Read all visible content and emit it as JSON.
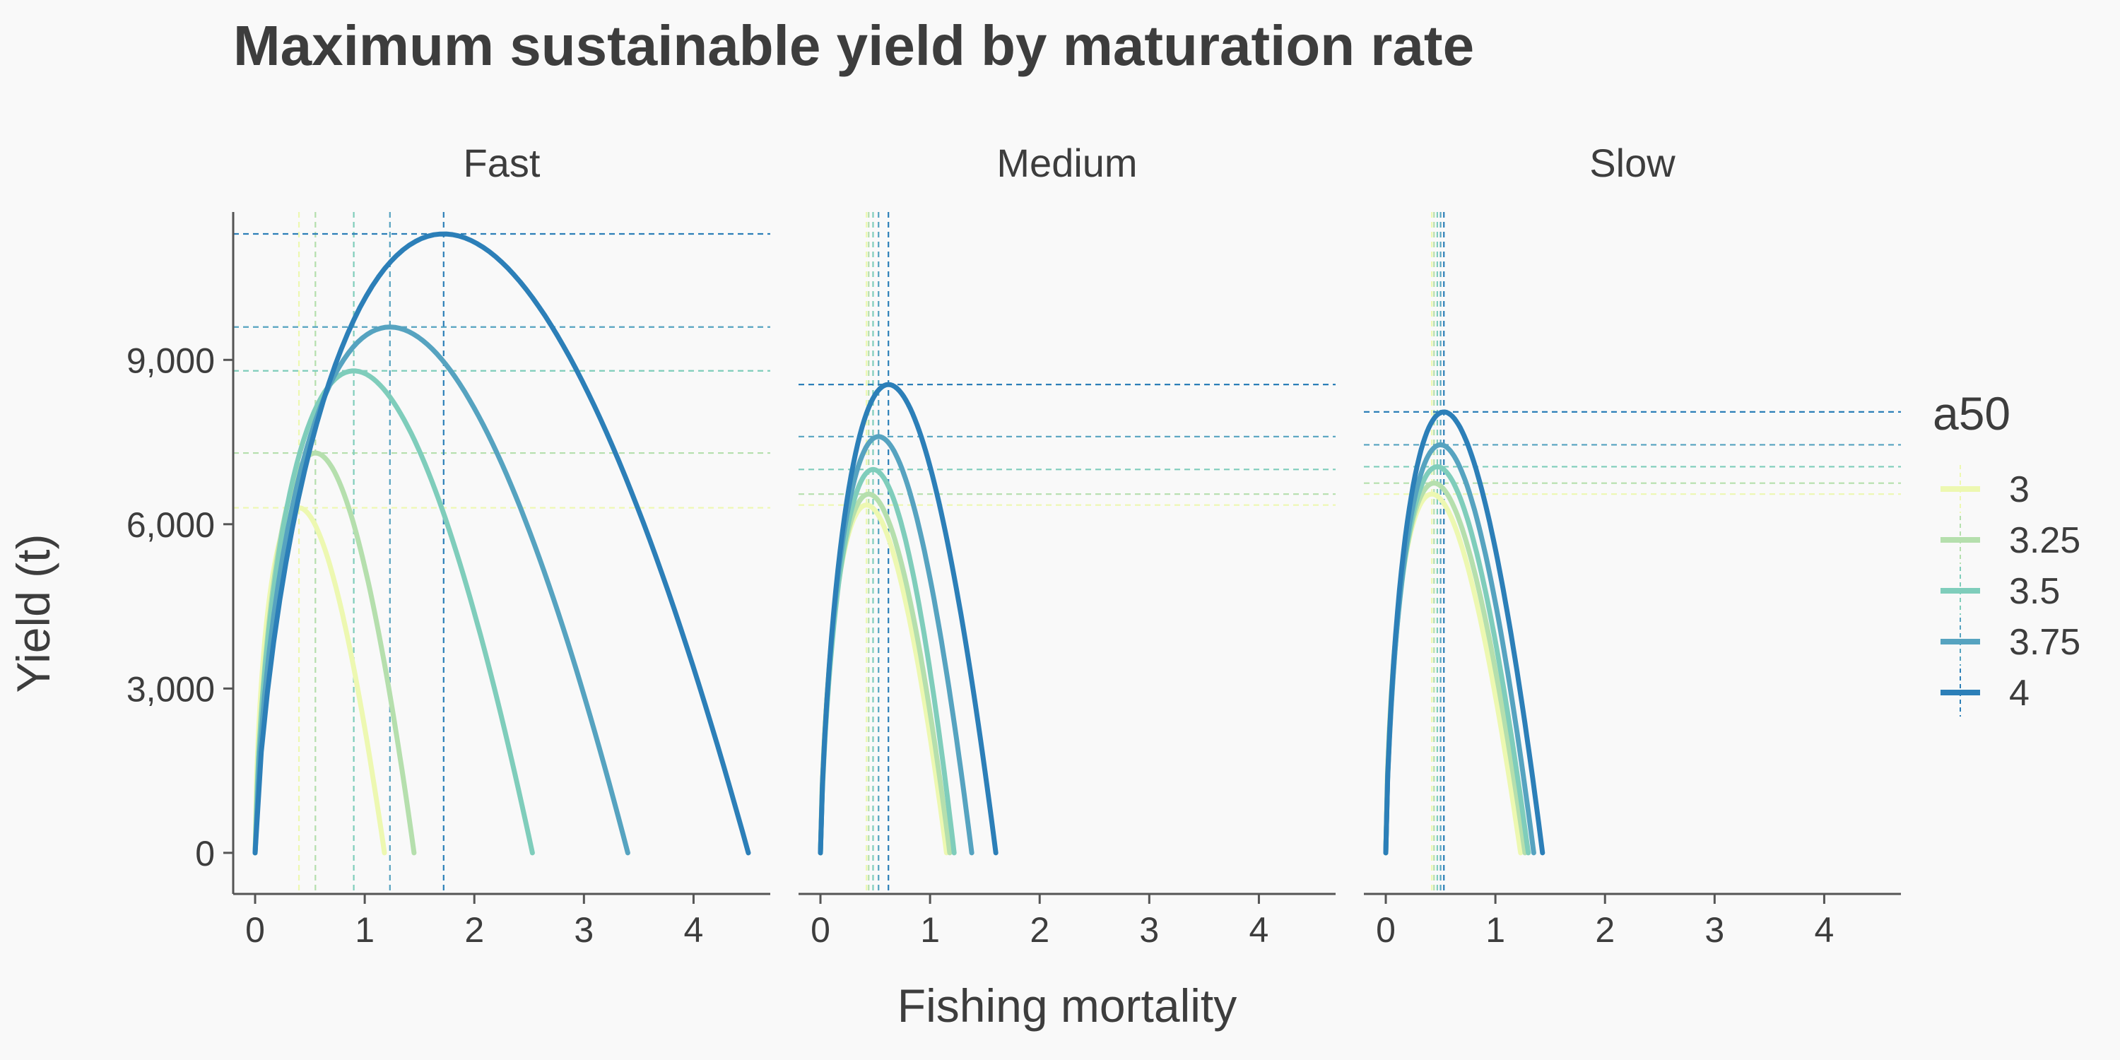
{
  "chart_data": {
    "type": "line",
    "title": "Maximum sustainable yield by maturation rate",
    "xlabel": "Fishing mortality",
    "ylabel": "Yield (t)",
    "xlim": [
      -0.2,
      4.7
    ],
    "ylim": [
      -750,
      11700
    ],
    "x_ticks": [
      0,
      1,
      2,
      3,
      4
    ],
    "x_tick_labels": [
      "0",
      "1",
      "2",
      "3",
      "4"
    ],
    "y_ticks": [
      0,
      3000,
      6000,
      9000
    ],
    "y_tick_labels": [
      "0",
      "3,000",
      "6,000",
      "9,000"
    ],
    "grid": false,
    "legend": {
      "title": "a50",
      "position": "right",
      "labels": [
        "3",
        "3.25",
        "3.5",
        "3.75",
        "4"
      ]
    },
    "colors": [
      "#edf8b1",
      "#b5dfad",
      "#7fcdbb",
      "#56a3c0",
      "#2c7fb8"
    ],
    "reference_lines": "dashed vertical line at F_MSY and dashed horizontal line at MSY for each a50",
    "panels": [
      {
        "name": "Fast",
        "series": [
          {
            "name": "3",
            "fmsy": 0.4,
            "msy": 6300,
            "fmax": 1.18
          },
          {
            "name": "3.25",
            "fmsy": 0.55,
            "msy": 7300,
            "fmax": 1.45
          },
          {
            "name": "3.5",
            "fmsy": 0.9,
            "msy": 8800,
            "fmax": 2.53
          },
          {
            "name": "3.75",
            "fmsy": 1.23,
            "msy": 9600,
            "fmax": 3.4
          },
          {
            "name": "4",
            "fmsy": 1.72,
            "msy": 11300,
            "fmax": 4.5
          }
        ]
      },
      {
        "name": "Medium",
        "series": [
          {
            "name": "3",
            "fmsy": 0.42,
            "msy": 6350,
            "fmax": 1.15
          },
          {
            "name": "3.25",
            "fmsy": 0.44,
            "msy": 6550,
            "fmax": 1.18
          },
          {
            "name": "3.5",
            "fmsy": 0.48,
            "msy": 7000,
            "fmax": 1.22
          },
          {
            "name": "3.75",
            "fmsy": 0.53,
            "msy": 7600,
            "fmax": 1.38
          },
          {
            "name": "4",
            "fmsy": 0.62,
            "msy": 8550,
            "fmax": 1.6
          }
        ]
      },
      {
        "name": "Slow",
        "series": [
          {
            "name": "3",
            "fmsy": 0.42,
            "msy": 6550,
            "fmax": 1.23
          },
          {
            "name": "3.25",
            "fmsy": 0.44,
            "msy": 6750,
            "fmax": 1.27
          },
          {
            "name": "3.5",
            "fmsy": 0.47,
            "msy": 7050,
            "fmax": 1.3
          },
          {
            "name": "3.75",
            "fmsy": 0.5,
            "msy": 7450,
            "fmax": 1.35
          },
          {
            "name": "4",
            "fmsy": 0.53,
            "msy": 8050,
            "fmax": 1.43
          }
        ]
      }
    ]
  }
}
